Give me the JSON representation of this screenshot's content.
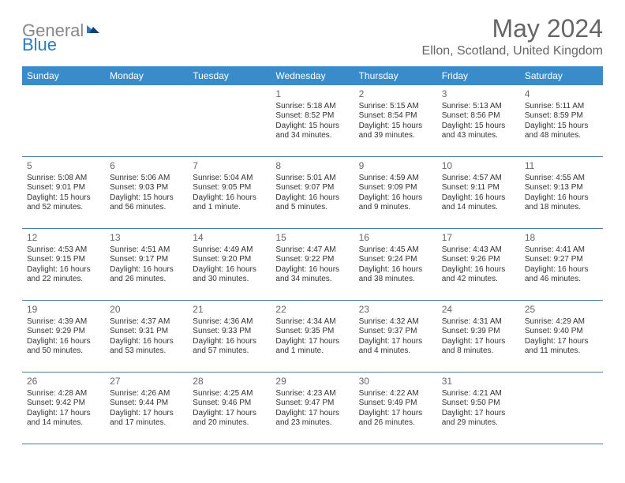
{
  "brand": {
    "part1": "General",
    "part2": "Blue"
  },
  "title": "May 2024",
  "location": "Ellon, Scotland, United Kingdom",
  "colors": {
    "header_bg": "#3a8bc9",
    "row_border": "#4a7aa5",
    "text": "#333333",
    "muted": "#666666",
    "white": "#ffffff"
  },
  "weekdays": [
    "Sunday",
    "Monday",
    "Tuesday",
    "Wednesday",
    "Thursday",
    "Friday",
    "Saturday"
  ],
  "weeks": [
    [
      null,
      null,
      null,
      {
        "n": "1",
        "sr": "5:18 AM",
        "ss": "8:52 PM",
        "dl": "15 hours and 34 minutes."
      },
      {
        "n": "2",
        "sr": "5:15 AM",
        "ss": "8:54 PM",
        "dl": "15 hours and 39 minutes."
      },
      {
        "n": "3",
        "sr": "5:13 AM",
        "ss": "8:56 PM",
        "dl": "15 hours and 43 minutes."
      },
      {
        "n": "4",
        "sr": "5:11 AM",
        "ss": "8:59 PM",
        "dl": "15 hours and 48 minutes."
      }
    ],
    [
      {
        "n": "5",
        "sr": "5:08 AM",
        "ss": "9:01 PM",
        "dl": "15 hours and 52 minutes."
      },
      {
        "n": "6",
        "sr": "5:06 AM",
        "ss": "9:03 PM",
        "dl": "15 hours and 56 minutes."
      },
      {
        "n": "7",
        "sr": "5:04 AM",
        "ss": "9:05 PM",
        "dl": "16 hours and 1 minute."
      },
      {
        "n": "8",
        "sr": "5:01 AM",
        "ss": "9:07 PM",
        "dl": "16 hours and 5 minutes."
      },
      {
        "n": "9",
        "sr": "4:59 AM",
        "ss": "9:09 PM",
        "dl": "16 hours and 9 minutes."
      },
      {
        "n": "10",
        "sr": "4:57 AM",
        "ss": "9:11 PM",
        "dl": "16 hours and 14 minutes."
      },
      {
        "n": "11",
        "sr": "4:55 AM",
        "ss": "9:13 PM",
        "dl": "16 hours and 18 minutes."
      }
    ],
    [
      {
        "n": "12",
        "sr": "4:53 AM",
        "ss": "9:15 PM",
        "dl": "16 hours and 22 minutes."
      },
      {
        "n": "13",
        "sr": "4:51 AM",
        "ss": "9:17 PM",
        "dl": "16 hours and 26 minutes."
      },
      {
        "n": "14",
        "sr": "4:49 AM",
        "ss": "9:20 PM",
        "dl": "16 hours and 30 minutes."
      },
      {
        "n": "15",
        "sr": "4:47 AM",
        "ss": "9:22 PM",
        "dl": "16 hours and 34 minutes."
      },
      {
        "n": "16",
        "sr": "4:45 AM",
        "ss": "9:24 PM",
        "dl": "16 hours and 38 minutes."
      },
      {
        "n": "17",
        "sr": "4:43 AM",
        "ss": "9:26 PM",
        "dl": "16 hours and 42 minutes."
      },
      {
        "n": "18",
        "sr": "4:41 AM",
        "ss": "9:27 PM",
        "dl": "16 hours and 46 minutes."
      }
    ],
    [
      {
        "n": "19",
        "sr": "4:39 AM",
        "ss": "9:29 PM",
        "dl": "16 hours and 50 minutes."
      },
      {
        "n": "20",
        "sr": "4:37 AM",
        "ss": "9:31 PM",
        "dl": "16 hours and 53 minutes."
      },
      {
        "n": "21",
        "sr": "4:36 AM",
        "ss": "9:33 PM",
        "dl": "16 hours and 57 minutes."
      },
      {
        "n": "22",
        "sr": "4:34 AM",
        "ss": "9:35 PM",
        "dl": "17 hours and 1 minute."
      },
      {
        "n": "23",
        "sr": "4:32 AM",
        "ss": "9:37 PM",
        "dl": "17 hours and 4 minutes."
      },
      {
        "n": "24",
        "sr": "4:31 AM",
        "ss": "9:39 PM",
        "dl": "17 hours and 8 minutes."
      },
      {
        "n": "25",
        "sr": "4:29 AM",
        "ss": "9:40 PM",
        "dl": "17 hours and 11 minutes."
      }
    ],
    [
      {
        "n": "26",
        "sr": "4:28 AM",
        "ss": "9:42 PM",
        "dl": "17 hours and 14 minutes."
      },
      {
        "n": "27",
        "sr": "4:26 AM",
        "ss": "9:44 PM",
        "dl": "17 hours and 17 minutes."
      },
      {
        "n": "28",
        "sr": "4:25 AM",
        "ss": "9:46 PM",
        "dl": "17 hours and 20 minutes."
      },
      {
        "n": "29",
        "sr": "4:23 AM",
        "ss": "9:47 PM",
        "dl": "17 hours and 23 minutes."
      },
      {
        "n": "30",
        "sr": "4:22 AM",
        "ss": "9:49 PM",
        "dl": "17 hours and 26 minutes."
      },
      {
        "n": "31",
        "sr": "4:21 AM",
        "ss": "9:50 PM",
        "dl": "17 hours and 29 minutes."
      },
      null
    ]
  ],
  "labels": {
    "sunrise": "Sunrise:",
    "sunset": "Sunset:",
    "daylight": "Daylight:"
  }
}
